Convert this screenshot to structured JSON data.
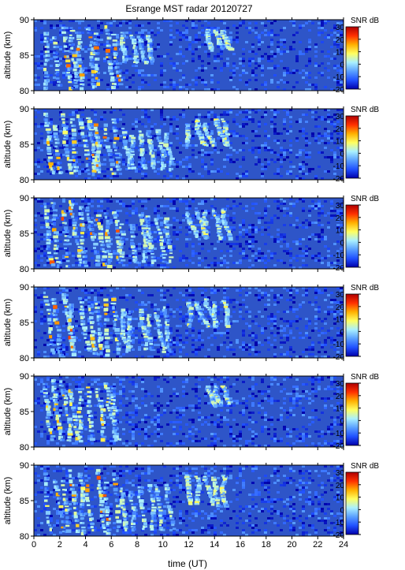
{
  "chart_data": {
    "type": "heatmap",
    "title": "Esrange MST radar 20120727",
    "xlabel": "time (UT)",
    "ylabel": "altitude (km)",
    "xlim": [
      0,
      24
    ],
    "ylim": [
      80,
      90
    ],
    "x_ticks": [
      "0",
      "2",
      "4",
      "6",
      "8",
      "10",
      "12",
      "14",
      "16",
      "18",
      "20",
      "22",
      "24"
    ],
    "y_ticks": [
      "80",
      "85",
      "90"
    ],
    "colorbar": {
      "label": "SNR dB",
      "range": [
        -20,
        30
      ],
      "ticks": [
        "30",
        "20",
        "10",
        "0",
        "-10",
        "-20"
      ],
      "colors": [
        "#0000aa",
        "#2050ff",
        "#5aa0ff",
        "#aaf0ff",
        "#ffff60",
        "#ffb000",
        "#ff3000",
        "#b00000"
      ]
    },
    "background_color": "#2e55c8",
    "panels": [
      {
        "id": 1,
        "y_tick_labels_shown": [
          "80",
          "85",
          "90"
        ],
        "structures": [
          {
            "t_start": 0.5,
            "t_end": 6.5,
            "alt_min": 80.5,
            "alt_max": 90,
            "snr_max_db": 20
          },
          {
            "t_start": 6.5,
            "t_end": 9,
            "alt_min": 84,
            "alt_max": 89,
            "snr_max_db": 5
          },
          {
            "t_start": 13.2,
            "t_end": 14.8,
            "alt_min": 86,
            "alt_max": 89,
            "snr_max_db": 10
          }
        ]
      },
      {
        "id": 2,
        "y_tick_labels_shown": [
          "80",
          "85",
          "90"
        ],
        "structures": [
          {
            "t_start": 0.5,
            "t_end": 6.5,
            "alt_min": 81,
            "alt_max": 90,
            "snr_max_db": 20
          },
          {
            "t_start": 6.5,
            "t_end": 10.5,
            "alt_min": 81.5,
            "alt_max": 88,
            "snr_max_db": 5
          },
          {
            "t_start": 11.5,
            "t_end": 15,
            "alt_min": 85,
            "alt_max": 89,
            "snr_max_db": 10
          }
        ]
      },
      {
        "id": 3,
        "y_tick_labels_shown": [
          "80",
          "85",
          "90"
        ],
        "structures": [
          {
            "t_start": 0.5,
            "t_end": 6.5,
            "alt_min": 80.5,
            "alt_max": 90,
            "snr_max_db": 22
          },
          {
            "t_start": 6.5,
            "t_end": 10.5,
            "alt_min": 81,
            "alt_max": 88,
            "snr_max_db": 5
          },
          {
            "t_start": 11.5,
            "t_end": 15,
            "alt_min": 84.5,
            "alt_max": 89,
            "snr_max_db": 10
          }
        ]
      },
      {
        "id": 4,
        "y_tick_labels_shown": [
          "80",
          "85",
          "90"
        ],
        "structures": [
          {
            "t_start": 0.5,
            "t_end": 6.5,
            "alt_min": 80.5,
            "alt_max": 90,
            "snr_max_db": 22
          },
          {
            "t_start": 6.5,
            "t_end": 10.5,
            "alt_min": 81,
            "alt_max": 88,
            "snr_max_db": 5
          },
          {
            "t_start": 11.5,
            "t_end": 15,
            "alt_min": 84.5,
            "alt_max": 89,
            "snr_max_db": 10
          }
        ]
      },
      {
        "id": 5,
        "y_tick_labels_shown": [
          "80",
          "85",
          "90"
        ],
        "structures": [
          {
            "t_start": 0.5,
            "t_end": 6.5,
            "alt_min": 81,
            "alt_max": 90,
            "snr_max_db": 15
          },
          {
            "t_start": 13.2,
            "t_end": 14.8,
            "alt_min": 86,
            "alt_max": 89,
            "snr_max_db": 8
          }
        ]
      },
      {
        "id": 6,
        "y_tick_labels_shown": [
          "80",
          "85",
          "90"
        ],
        "structures": [
          {
            "t_start": 0.5,
            "t_end": 6.5,
            "alt_min": 80.5,
            "alt_max": 90,
            "snr_max_db": 22
          },
          {
            "t_start": 6.5,
            "t_end": 10.5,
            "alt_min": 81,
            "alt_max": 88,
            "snr_max_db": 5
          },
          {
            "t_start": 11.5,
            "t_end": 15,
            "alt_min": 84.5,
            "alt_max": 89,
            "snr_max_db": 10
          }
        ]
      }
    ]
  }
}
